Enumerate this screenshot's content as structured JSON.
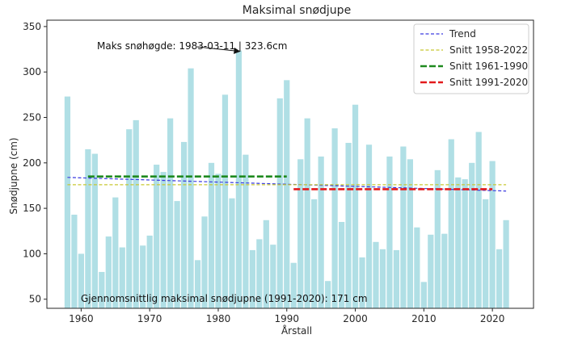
{
  "chart_data": {
    "type": "bar",
    "title": "Maksimal snødjupe",
    "xlabel": "Årstall",
    "ylabel": "Snødjupne (cm)",
    "xlim": [
      1955,
      2026
    ],
    "ylim": [
      40,
      357
    ],
    "xticks": [
      1960,
      1970,
      1980,
      1990,
      2000,
      2010,
      2020
    ],
    "yticks": [
      50,
      100,
      150,
      200,
      250,
      300,
      350
    ],
    "grid": false,
    "bar_color": "#b0dfe5",
    "x": [
      1958,
      1959,
      1960,
      1961,
      1962,
      1963,
      1964,
      1965,
      1966,
      1967,
      1968,
      1969,
      1970,
      1971,
      1972,
      1973,
      1974,
      1975,
      1976,
      1977,
      1978,
      1979,
      1980,
      1981,
      1982,
      1983,
      1984,
      1985,
      1986,
      1987,
      1988,
      1989,
      1990,
      1991,
      1992,
      1993,
      1994,
      1995,
      1996,
      1997,
      1998,
      1999,
      2000,
      2001,
      2002,
      2003,
      2004,
      2005,
      2006,
      2007,
      2008,
      2009,
      2010,
      2011,
      2012,
      2013,
      2014,
      2015,
      2016,
      2017,
      2018,
      2019,
      2020,
      2021,
      2022
    ],
    "values": [
      273,
      143,
      100,
      215,
      210,
      80,
      119,
      162,
      107,
      237,
      247,
      109,
      120,
      198,
      190,
      249,
      158,
      223,
      304,
      93,
      141,
      200,
      188,
      275,
      161,
      323.6,
      209,
      104,
      116,
      137,
      110,
      271,
      291,
      90,
      204,
      249,
      160,
      207,
      70,
      238,
      135,
      222,
      264,
      96,
      220,
      113,
      105,
      207,
      104,
      218,
      204,
      129,
      69,
      121,
      192,
      122,
      226,
      184,
      182,
      200,
      234,
      160,
      202,
      105,
      137
    ],
    "lines": [
      {
        "name": "Trend",
        "color": "#3a3ae0",
        "dash": "4,2.5",
        "width": 1.2,
        "x": [
          1958,
          2022
        ],
        "y": [
          184,
          169
        ]
      },
      {
        "name": "Snitt 1958-2022",
        "color": "#c8c832",
        "dash": "4,2.5",
        "width": 1.2,
        "x": [
          1958,
          2022
        ],
        "y": [
          176,
          176
        ]
      },
      {
        "name": "Snitt 1961-1990",
        "color": "#1f8a1f",
        "dash": "8,3",
        "width": 2.6,
        "x": [
          1961,
          1990
        ],
        "y": [
          185,
          185
        ]
      },
      {
        "name": "Snitt 1991-2020",
        "color": "#e31a1c",
        "dash": "8,3",
        "width": 2.6,
        "x": [
          1991,
          2020
        ],
        "y": [
          171,
          171
        ]
      }
    ],
    "legend_position": "top-right",
    "annotation_max": {
      "text": "Maks snøhøgde: 1983-03-11 | 323.6cm",
      "x": 1983,
      "y": 323.6
    },
    "annotation_avg": {
      "text": "Gjennomsnittlig maksimal snødjupne (1991-2020):  171 cm"
    }
  }
}
